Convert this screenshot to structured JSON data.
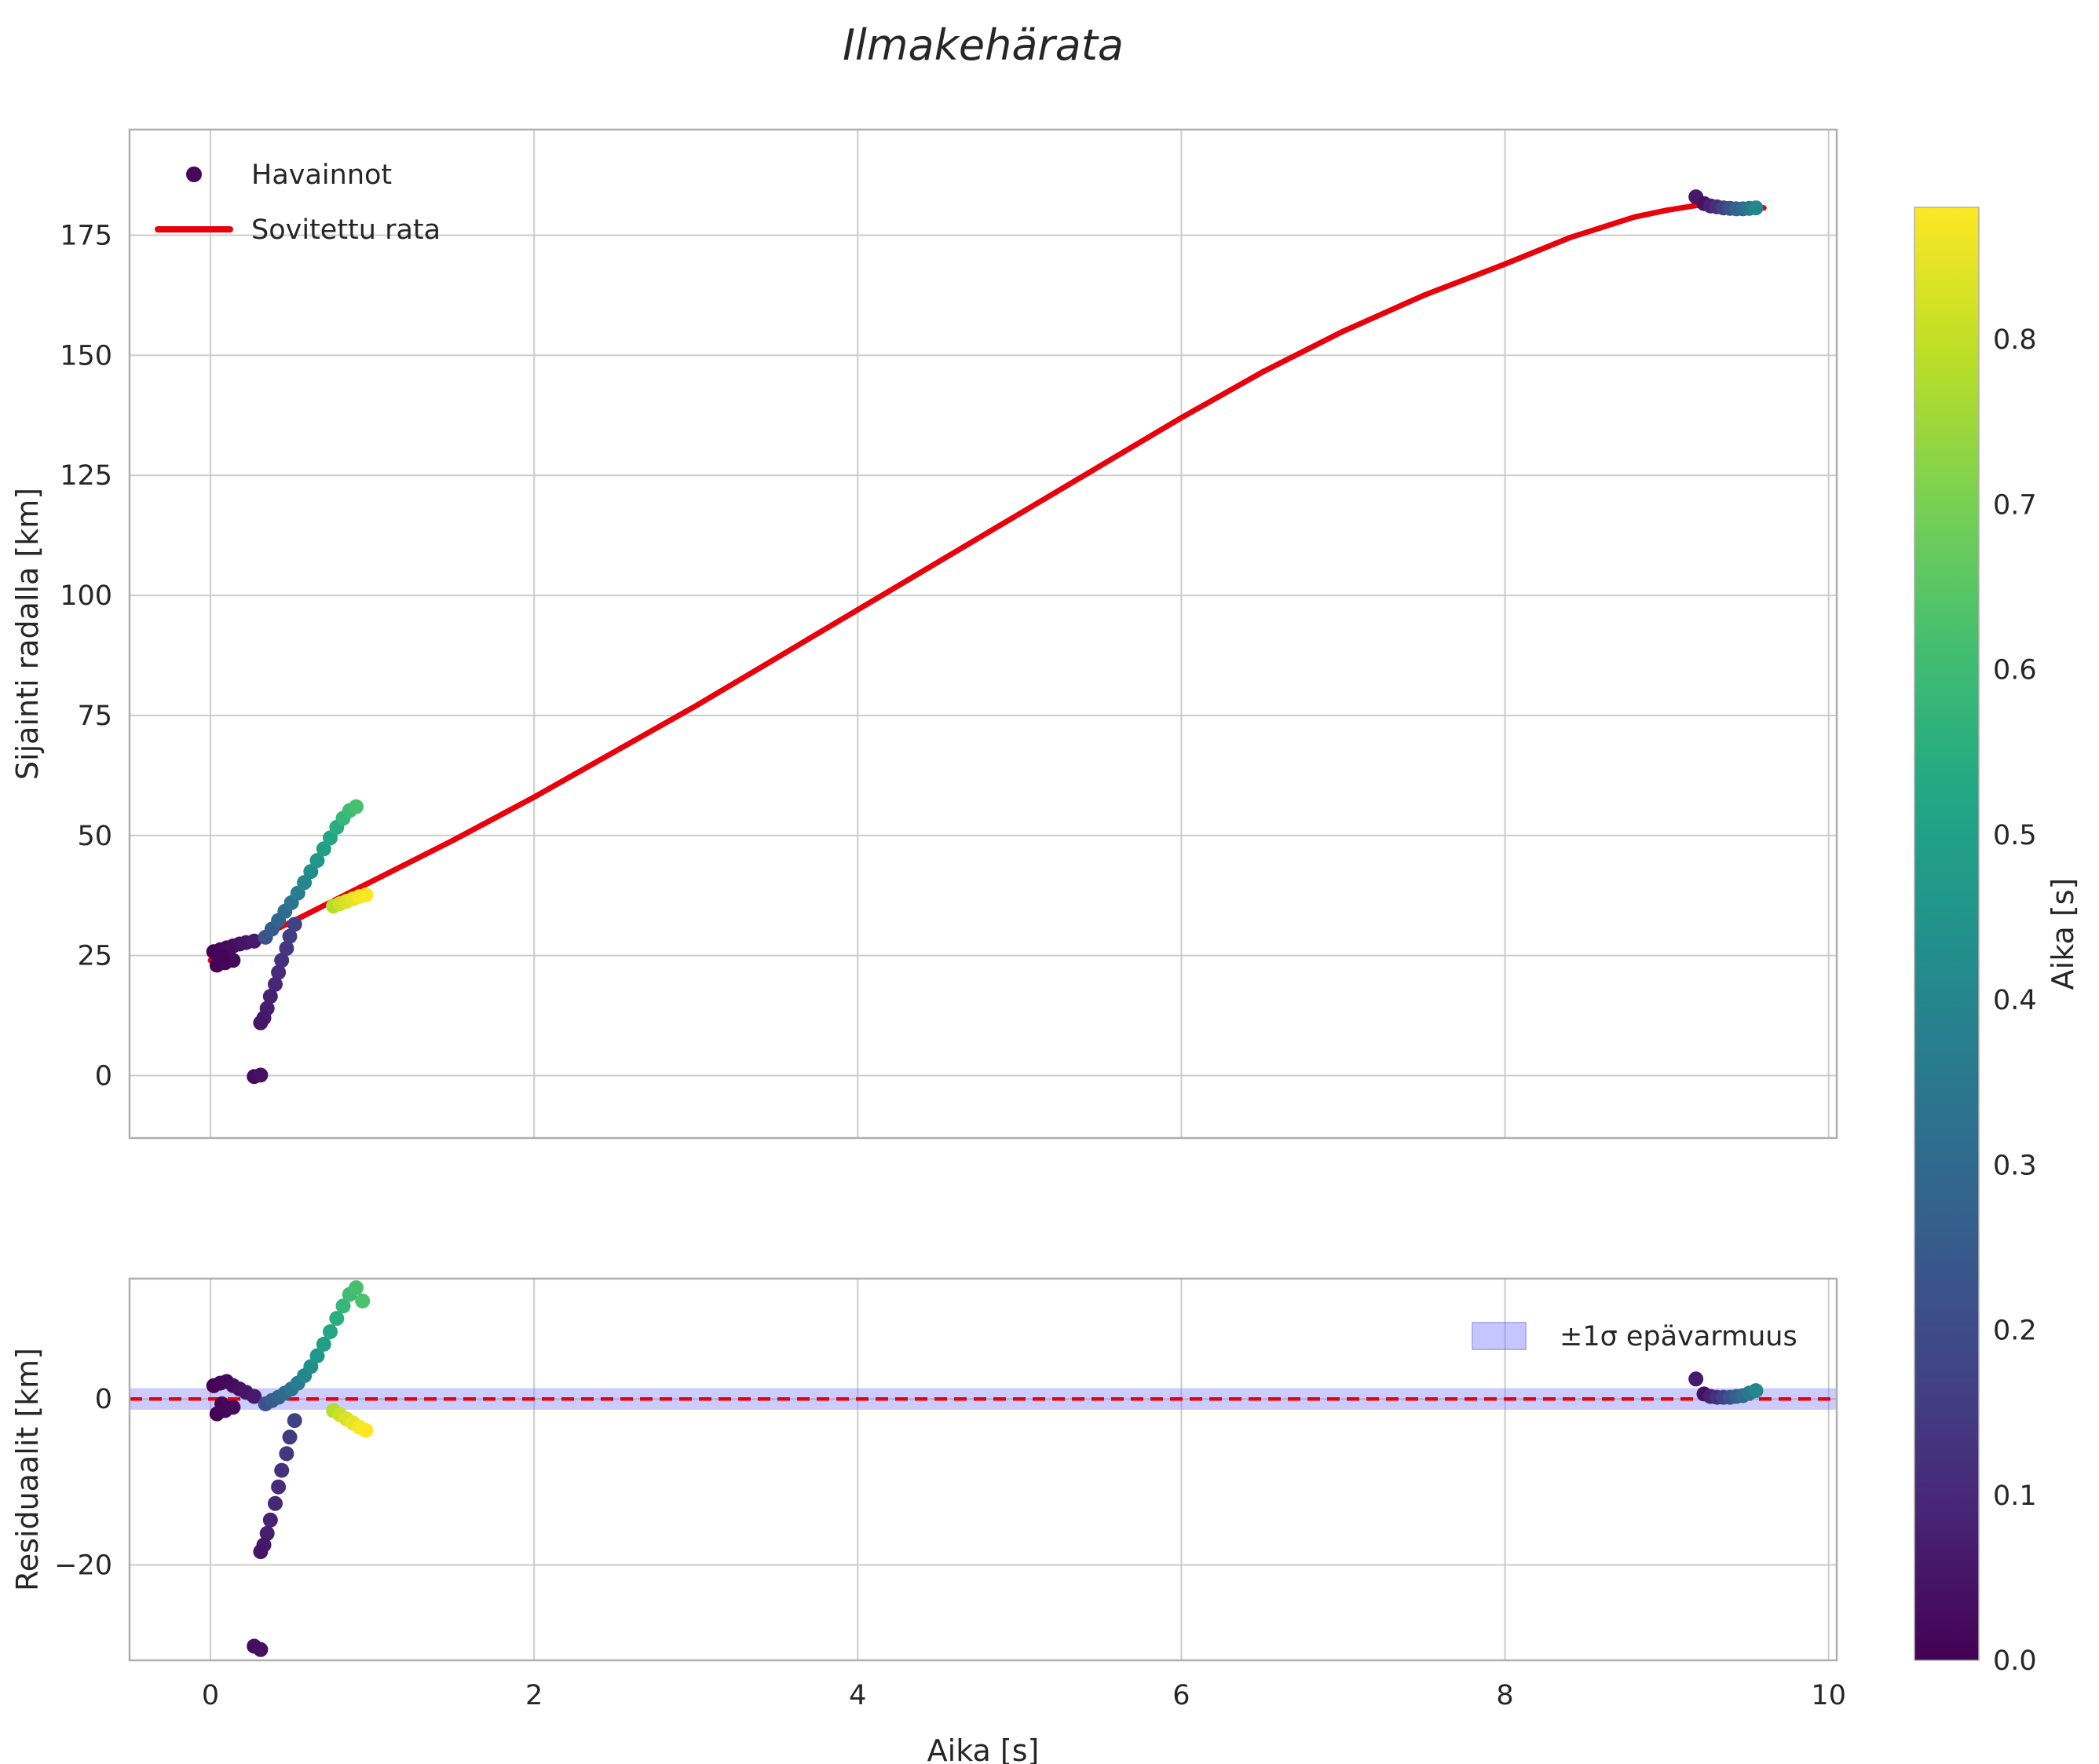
{
  "title": "Ilmakehärata",
  "colors": {
    "line_red": "#e8000b",
    "grid": "#cccccc",
    "spine": "#afafaf",
    "text": "#262626",
    "band_blue": "#7f7fff",
    "band_edge": "#5050e6",
    "legend_marker": "#46085c",
    "viridis": [
      [
        0,
        "#440154"
      ],
      [
        0.1,
        "#482475"
      ],
      [
        0.2,
        "#414487"
      ],
      [
        0.3,
        "#355f8d"
      ],
      [
        0.4,
        "#2a788e"
      ],
      [
        0.5,
        "#21918c"
      ],
      [
        0.6,
        "#22a884"
      ],
      [
        0.7,
        "#44bf70"
      ],
      [
        0.8,
        "#7ad151"
      ],
      [
        0.9,
        "#bddf26"
      ],
      [
        1,
        "#fde725"
      ]
    ]
  },
  "chart_data": [
    {
      "type": "scatter",
      "title": "Ilmakehärata",
      "ylabel": "Sijainti radalla [km]",
      "xlabel": "",
      "xlim": [
        -0.5,
        10.05
      ],
      "ylim": [
        -13,
        197
      ],
      "xticks": [
        0,
        2,
        4,
        6,
        8,
        10
      ],
      "show_xtick_labels": false,
      "yticks": [
        0,
        25,
        50,
        75,
        100,
        125,
        150,
        175
      ],
      "grid": true,
      "legend": {
        "position": "upper-left",
        "items": [
          {
            "label": "Havainnot",
            "marker": "dot"
          },
          {
            "label": "Sovitettu rata",
            "marker": "line"
          }
        ]
      },
      "scatter_name": "Havainnot",
      "scatter": [
        [
          0.02,
          25.8,
          0
        ],
        [
          0.06,
          26.2,
          0.01
        ],
        [
          0.1,
          26.6,
          0.02
        ],
        [
          0.14,
          27,
          0.03
        ],
        [
          0.18,
          27.4,
          0.04
        ],
        [
          0.22,
          27.7,
          0.05
        ],
        [
          0.27,
          28,
          0.06
        ],
        [
          0.04,
          23,
          0
        ],
        [
          0.09,
          23.5,
          0.01
        ],
        [
          0.14,
          24,
          0.02
        ],
        [
          0.07,
          24.6,
          0.01
        ],
        [
          0.34,
          28.8,
          0.22
        ],
        [
          0.38,
          30.5,
          0.25
        ],
        [
          0.42,
          32.3,
          0.28
        ],
        [
          0.46,
          34.2,
          0.31
        ],
        [
          0.5,
          36,
          0.34
        ],
        [
          0.54,
          38,
          0.37
        ],
        [
          0.58,
          40.2,
          0.4
        ],
        [
          0.62,
          42.5,
          0.43
        ],
        [
          0.66,
          44.8,
          0.46
        ],
        [
          0.7,
          47.2,
          0.49
        ],
        [
          0.74,
          49.5,
          0.52
        ],
        [
          0.78,
          51.7,
          0.55
        ],
        [
          0.82,
          53.6,
          0.58
        ],
        [
          0.86,
          55.2,
          0.6
        ],
        [
          0.9,
          56,
          0.62
        ],
        [
          0.52,
          31.5,
          0.17
        ],
        [
          0.49,
          29,
          0.15
        ],
        [
          0.47,
          26.5,
          0.14
        ],
        [
          0.44,
          24,
          0.12
        ],
        [
          0.42,
          21.5,
          0.11
        ],
        [
          0.4,
          19,
          0.1
        ],
        [
          0.37,
          16.5,
          0.08
        ],
        [
          0.35,
          14,
          0.07
        ],
        [
          0.33,
          12,
          0.06
        ],
        [
          0.31,
          11,
          0.05
        ],
        [
          0.27,
          -0.2,
          0.03
        ],
        [
          0.31,
          0.1,
          0.04
        ],
        [
          0.76,
          35.3,
          0.78
        ],
        [
          0.8,
          35.8,
          0.81
        ],
        [
          0.84,
          36.3,
          0.83
        ],
        [
          0.88,
          36.8,
          0.85
        ],
        [
          0.92,
          37.3,
          0.87
        ],
        [
          0.96,
          37.6,
          0.88
        ],
        [
          9.18,
          183,
          0.06
        ],
        [
          9.23,
          181.6,
          0.04
        ],
        [
          9.27,
          181.1,
          0.08
        ],
        [
          9.31,
          180.9,
          0.12
        ],
        [
          9.35,
          180.7,
          0.17
        ],
        [
          9.39,
          180.6,
          0.22
        ],
        [
          9.43,
          180.5,
          0.27
        ],
        [
          9.47,
          180.5,
          0.31
        ],
        [
          9.51,
          180.6,
          0.35
        ],
        [
          9.55,
          180.7,
          0.4
        ]
      ],
      "line": {
        "name": "Sovitettu rata",
        "points": [
          [
            0,
            24
          ],
          [
            0.5,
            32
          ],
          [
            1,
            40.5
          ],
          [
            1.5,
            49
          ],
          [
            2,
            58
          ],
          [
            2.5,
            67.5
          ],
          [
            3,
            77
          ],
          [
            3.5,
            87
          ],
          [
            4,
            97
          ],
          [
            4.5,
            107
          ],
          [
            5,
            117
          ],
          [
            5.5,
            127
          ],
          [
            6,
            137
          ],
          [
            6.5,
            146.5
          ],
          [
            7,
            155
          ],
          [
            7.5,
            162.5
          ],
          [
            8,
            169
          ],
          [
            8.4,
            174.5
          ],
          [
            8.8,
            178.8
          ],
          [
            9,
            180.2
          ],
          [
            9.2,
            181.3
          ],
          [
            9.35,
            181.6
          ],
          [
            9.5,
            181.2
          ],
          [
            9.6,
            180.7
          ]
        ]
      }
    },
    {
      "type": "scatter",
      "ylabel": "Residuaalit [km]",
      "xlabel": "Aika [s]",
      "xlim": [
        -0.5,
        10.05
      ],
      "ylim": [
        -31.5,
        14.5
      ],
      "xticks": [
        0,
        2,
        4,
        6,
        8,
        10
      ],
      "show_xtick_labels": true,
      "yticks": [
        -20,
        0
      ],
      "grid": true,
      "zero_line": {
        "y": 0,
        "style": "dashed"
      },
      "band": {
        "y0": -1.3,
        "y1": 1.3,
        "label": "±1σ epävarmuus"
      },
      "legend": {
        "position": "upper-right",
        "items": [
          {
            "label": "±1σ epävarmuus",
            "marker": "patch"
          }
        ]
      },
      "scatter_name": "Residuaalit",
      "scatter": [
        [
          0.02,
          1.6,
          0
        ],
        [
          0.06,
          1.9,
          0.01
        ],
        [
          0.1,
          2.1,
          0.02
        ],
        [
          0.14,
          1.6,
          0.03
        ],
        [
          0.18,
          1.2,
          0.04
        ],
        [
          0.22,
          0.8,
          0.05
        ],
        [
          0.27,
          0.3,
          0.06
        ],
        [
          0.04,
          -1.8,
          0
        ],
        [
          0.09,
          -1.4,
          0.01
        ],
        [
          0.14,
          -1,
          0.02
        ],
        [
          0.07,
          -0.6,
          0.01
        ],
        [
          0.34,
          -0.6,
          0.22
        ],
        [
          0.38,
          -0.2,
          0.25
        ],
        [
          0.42,
          0.2,
          0.28
        ],
        [
          0.46,
          0.7,
          0.31
        ],
        [
          0.5,
          1.2,
          0.34
        ],
        [
          0.54,
          1.9,
          0.37
        ],
        [
          0.58,
          2.8,
          0.4
        ],
        [
          0.62,
          3.9,
          0.43
        ],
        [
          0.66,
          5.2,
          0.46
        ],
        [
          0.7,
          6.6,
          0.49
        ],
        [
          0.74,
          8.1,
          0.52
        ],
        [
          0.78,
          9.7,
          0.55
        ],
        [
          0.82,
          11.2,
          0.58
        ],
        [
          0.86,
          12.6,
          0.6
        ],
        [
          0.9,
          13.4,
          0.62
        ],
        [
          0.94,
          11.8,
          0.63
        ],
        [
          0.52,
          -2.6,
          0.17
        ],
        [
          0.49,
          -4.6,
          0.15
        ],
        [
          0.47,
          -6.6,
          0.14
        ],
        [
          0.44,
          -8.6,
          0.12
        ],
        [
          0.42,
          -10.6,
          0.11
        ],
        [
          0.4,
          -12.6,
          0.1
        ],
        [
          0.37,
          -14.6,
          0.08
        ],
        [
          0.35,
          -16.2,
          0.07
        ],
        [
          0.33,
          -17.6,
          0.06
        ],
        [
          0.31,
          -18.4,
          0.05
        ],
        [
          0.27,
          -29.8,
          0.03
        ],
        [
          0.31,
          -30.2,
          0.04
        ],
        [
          0.76,
          -1.4,
          0.78
        ],
        [
          0.8,
          -1.9,
          0.81
        ],
        [
          0.84,
          -2.4,
          0.83
        ],
        [
          0.88,
          -2.9,
          0.85
        ],
        [
          0.92,
          -3.4,
          0.87
        ],
        [
          0.96,
          -3.8,
          0.88
        ],
        [
          9.18,
          2.4,
          0.06
        ],
        [
          9.23,
          0.6,
          0.04
        ],
        [
          9.27,
          0.3,
          0.08
        ],
        [
          9.31,
          0.2,
          0.12
        ],
        [
          9.35,
          0.2,
          0.17
        ],
        [
          9.39,
          0.2,
          0.22
        ],
        [
          9.43,
          0.3,
          0.27
        ],
        [
          9.47,
          0.4,
          0.31
        ],
        [
          9.51,
          0.7,
          0.35
        ],
        [
          9.55,
          1,
          0.4
        ]
      ]
    }
  ],
  "colorbar": {
    "label": "Aika [s]",
    "vmin": 0,
    "vmax": 0.88,
    "ticks": [
      0,
      0.1,
      0.2,
      0.3,
      0.4,
      0.5,
      0.6,
      0.7,
      0.8
    ]
  }
}
